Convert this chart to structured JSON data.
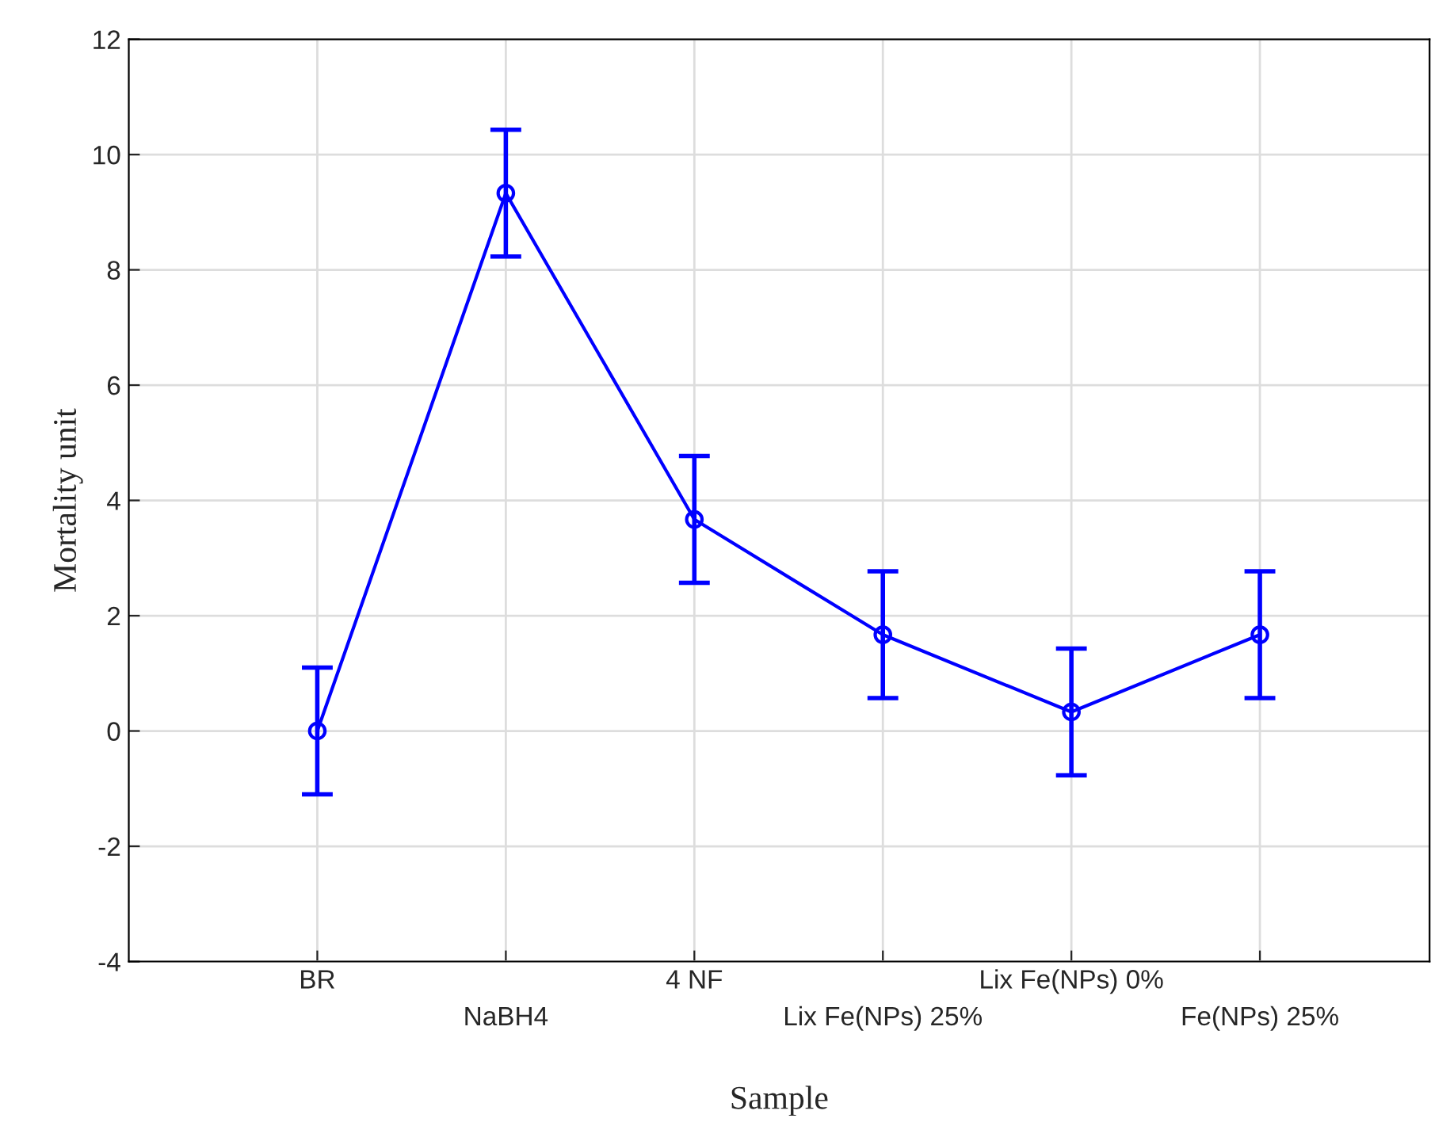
{
  "chart_data": {
    "type": "line",
    "xlabel": "Sample",
    "ylabel": "Mortality unit",
    "categories": [
      "BR",
      "NaBH4",
      "4 NF",
      "Lix Fe(NPs) 25%",
      "Lix Fe(NPs) 0%",
      "Fe(NPs) 25%"
    ],
    "series": [
      {
        "color": "#0000ff",
        "values": [
          0,
          9.33,
          3.67,
          1.67,
          0.33,
          1.67
        ],
        "errors": [
          1.1,
          1.1,
          1.1,
          1.1,
          1.1,
          1.1
        ]
      }
    ],
    "ylim": [
      -4,
      12
    ],
    "yticks": [
      -4,
      -2,
      0,
      2,
      4,
      6,
      8,
      10,
      12
    ],
    "grid": true,
    "marker": "circle",
    "line_style": "solid"
  }
}
